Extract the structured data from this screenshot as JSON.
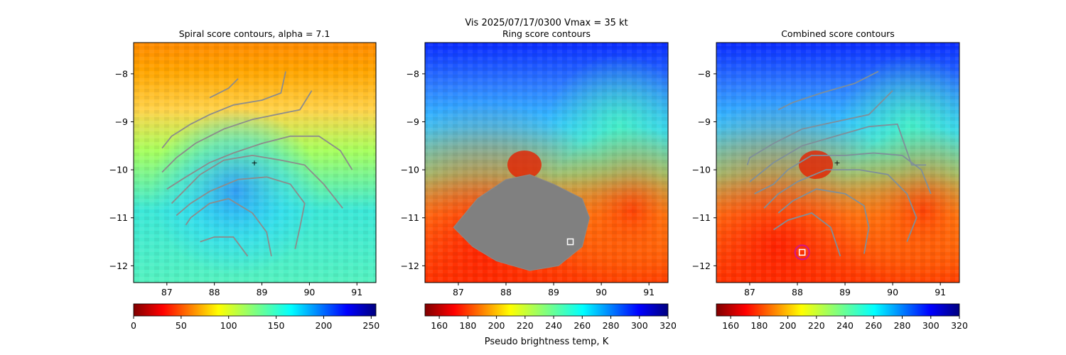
{
  "figure": {
    "suptitle_line1": "Vis  2025/07/17/0300    Vmax = 35 kt",
    "colorbar_label": "Pseudo brightness temp, K"
  },
  "chart_data": [
    {
      "type": "heatmap",
      "title": "Spiral score contours, alpha =  7.1",
      "xlim": [
        86.3,
        91.4
      ],
      "ylim": [
        -12.35,
        -7.35
      ],
      "xticks": [
        "87",
        "88",
        "89",
        "90",
        "91"
      ],
      "yticks": [
        "−8",
        "−9",
        "−10",
        "−11",
        "−12"
      ],
      "colormap": "jet_r",
      "colorbar": {
        "range": [
          0,
          255
        ],
        "ticks": [
          "0",
          "50",
          "100",
          "150",
          "200",
          "250"
        ]
      },
      "contour_lines": [
        [
          [
            88.5,
            -8.1
          ],
          [
            88.3,
            -8.3
          ],
          [
            87.9,
            -8.5
          ]
        ],
        [
          [
            89.5,
            -7.95
          ],
          [
            89.4,
            -8.4
          ],
          [
            89.0,
            -8.55
          ],
          [
            88.4,
            -8.65
          ],
          [
            87.9,
            -8.85
          ],
          [
            87.5,
            -9.05
          ],
          [
            87.1,
            -9.3
          ],
          [
            86.9,
            -9.55
          ]
        ],
        [
          [
            90.05,
            -8.35
          ],
          [
            89.8,
            -8.75
          ],
          [
            89.3,
            -8.85
          ],
          [
            88.8,
            -8.95
          ],
          [
            88.2,
            -9.15
          ],
          [
            87.6,
            -9.45
          ],
          [
            87.2,
            -9.75
          ],
          [
            86.9,
            -10.05
          ]
        ],
        [
          [
            90.9,
            -10.0
          ],
          [
            90.65,
            -9.6
          ],
          [
            90.2,
            -9.3
          ],
          [
            89.6,
            -9.3
          ],
          [
            89.0,
            -9.45
          ],
          [
            88.4,
            -9.65
          ],
          [
            87.9,
            -9.85
          ],
          [
            87.4,
            -10.15
          ],
          [
            87.0,
            -10.4
          ]
        ],
        [
          [
            90.7,
            -10.8
          ],
          [
            90.3,
            -10.3
          ],
          [
            89.9,
            -9.9
          ],
          [
            89.4,
            -9.8
          ],
          [
            88.8,
            -9.7
          ],
          [
            88.2,
            -9.8
          ],
          [
            87.7,
            -10.1
          ],
          [
            87.4,
            -10.4
          ],
          [
            87.1,
            -10.7
          ]
        ],
        [
          [
            89.7,
            -11.65
          ],
          [
            89.8,
            -11.2
          ],
          [
            89.9,
            -10.7
          ],
          [
            89.6,
            -10.3
          ],
          [
            89.1,
            -10.15
          ],
          [
            88.5,
            -10.2
          ],
          [
            87.9,
            -10.45
          ],
          [
            87.5,
            -10.7
          ],
          [
            87.2,
            -10.95
          ]
        ],
        [
          [
            89.2,
            -11.8
          ],
          [
            89.1,
            -11.3
          ],
          [
            88.8,
            -10.9
          ],
          [
            88.3,
            -10.6
          ],
          [
            87.9,
            -10.7
          ],
          [
            87.5,
            -11.0
          ],
          [
            87.4,
            -11.15
          ]
        ],
        [
          [
            88.7,
            -11.8
          ],
          [
            88.4,
            -11.4
          ],
          [
            88.0,
            -11.4
          ],
          [
            87.7,
            -11.5
          ]
        ]
      ]
    },
    {
      "type": "heatmap",
      "title": "Ring score contours",
      "xlim": [
        86.3,
        91.4
      ],
      "ylim": [
        -12.35,
        -7.35
      ],
      "xticks": [
        "87",
        "88",
        "89",
        "90",
        "91"
      ],
      "yticks": [
        "−8",
        "−9",
        "−10",
        "−11",
        "−12"
      ],
      "colormap": "jet_r",
      "colorbar": {
        "range": [
          150,
          320
        ],
        "ticks": [
          "160",
          "180",
          "200",
          "220",
          "240",
          "260",
          "280",
          "300",
          "320"
        ]
      },
      "marker_square": [
        89.35,
        -11.5
      ],
      "masked_region": [
        [
          86.9,
          -11.2
        ],
        [
          87.4,
          -10.6
        ],
        [
          88.0,
          -10.2
        ],
        [
          88.5,
          -10.1
        ],
        [
          89.0,
          -10.3
        ],
        [
          89.6,
          -10.6
        ],
        [
          89.75,
          -11.0
        ],
        [
          89.6,
          -11.6
        ],
        [
          89.1,
          -12.0
        ],
        [
          88.5,
          -12.1
        ],
        [
          87.8,
          -11.9
        ],
        [
          87.3,
          -11.6
        ]
      ]
    },
    {
      "type": "heatmap",
      "title": "Combined score contours",
      "xlim": [
        86.3,
        91.4
      ],
      "ylim": [
        -12.35,
        -7.35
      ],
      "xticks": [
        "87",
        "88",
        "89",
        "90",
        "91"
      ],
      "yticks": [
        "−8",
        "−9",
        "−10",
        "−11",
        "−12"
      ],
      "colormap": "jet_r",
      "colorbar": {
        "range": [
          150,
          320
        ],
        "ticks": [
          "160",
          "180",
          "200",
          "220",
          "240",
          "260",
          "280",
          "300",
          "320"
        ]
      },
      "marker_square": [
        88.1,
        -11.72
      ],
      "marker_circle": [
        88.1,
        -11.72
      ],
      "contour_lines": [
        [
          [
            89.7,
            -7.95
          ],
          [
            89.2,
            -8.2
          ],
          [
            88.5,
            -8.4
          ],
          [
            87.9,
            -8.6
          ],
          [
            87.6,
            -8.75
          ]
        ],
        [
          [
            90.0,
            -8.35
          ],
          [
            89.5,
            -8.85
          ],
          [
            88.8,
            -9.0
          ],
          [
            88.1,
            -9.15
          ],
          [
            87.5,
            -9.45
          ],
          [
            87.0,
            -9.75
          ],
          [
            86.95,
            -9.9
          ]
        ],
        [
          [
            90.7,
            -9.9
          ],
          [
            90.4,
            -9.9
          ],
          [
            90.1,
            -9.05
          ],
          [
            89.5,
            -9.1
          ],
          [
            88.8,
            -9.3
          ],
          [
            88.1,
            -9.5
          ],
          [
            87.5,
            -9.85
          ],
          [
            87.0,
            -10.25
          ]
        ],
        [
          [
            90.8,
            -10.5
          ],
          [
            90.6,
            -10.0
          ],
          [
            90.2,
            -9.7
          ],
          [
            89.6,
            -9.65
          ],
          [
            89.0,
            -9.7
          ],
          [
            88.3,
            -9.7
          ],
          [
            87.8,
            -10.0
          ],
          [
            87.5,
            -10.3
          ],
          [
            87.1,
            -10.5
          ]
        ],
        [
          [
            90.3,
            -11.5
          ],
          [
            90.5,
            -11.0
          ],
          [
            90.3,
            -10.5
          ],
          [
            89.9,
            -10.1
          ],
          [
            89.3,
            -10.0
          ],
          [
            88.6,
            -10.0
          ],
          [
            88.0,
            -10.25
          ],
          [
            87.6,
            -10.5
          ],
          [
            87.3,
            -10.8
          ]
        ],
        [
          [
            89.4,
            -11.75
          ],
          [
            89.5,
            -11.2
          ],
          [
            89.4,
            -10.75
          ],
          [
            89.0,
            -10.5
          ],
          [
            88.4,
            -10.4
          ],
          [
            87.9,
            -10.65
          ],
          [
            87.6,
            -10.9
          ]
        ],
        [
          [
            88.9,
            -11.8
          ],
          [
            88.7,
            -11.2
          ],
          [
            88.3,
            -10.9
          ],
          [
            87.8,
            -11.05
          ],
          [
            87.5,
            -11.25
          ]
        ]
      ]
    }
  ]
}
